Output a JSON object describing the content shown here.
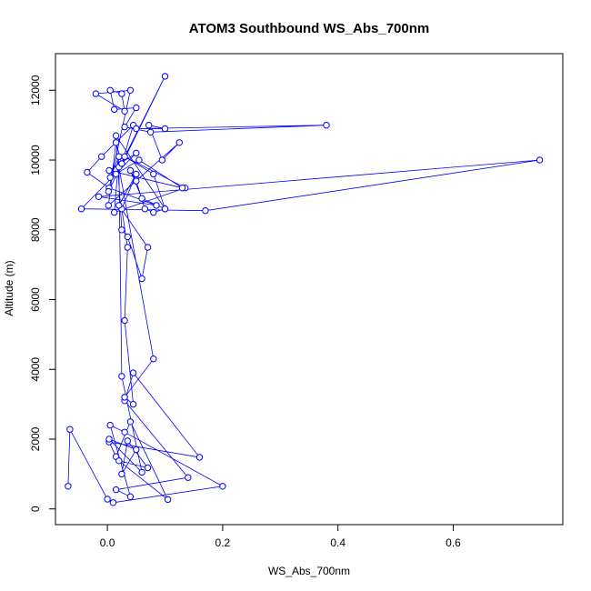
{
  "chart_data": {
    "type": "line",
    "title": "ATOM3 Southbound WS_Abs_700nm",
    "xlabel": "WS_Abs_700nm",
    "ylabel": "Altitude (m)",
    "xlim": [
      -0.09,
      0.79
    ],
    "ylim": [
      -450,
      13050
    ],
    "x_ticks": [
      0.0,
      0.2,
      0.4,
      0.6
    ],
    "x_tick_labels": [
      "0.0",
      "0.2",
      "0.4",
      "0.6"
    ],
    "y_ticks": [
      0,
      2000,
      4000,
      6000,
      8000,
      10000,
      12000
    ],
    "y_tick_labels": [
      "0",
      "2000",
      "4000",
      "6000",
      "8000",
      "10000",
      "12000"
    ],
    "grid": false,
    "legend": "none",
    "style": {
      "line_color": "#0000ff",
      "marker": "open-circle",
      "frame": true
    },
    "series": [
      {
        "x": [
          -0.068,
          -0.065,
          0.0,
          0.01,
          0.2,
          0.03,
          0.005,
          0.04,
          0.015,
          0.14,
          0.03,
          0.045,
          0.16,
          0.003,
          0.015,
          0.04,
          0.105,
          0.02,
          0.07,
          0.035,
          0.025,
          0.05,
          0.003,
          0.06,
          0.025,
          0.02,
          0.08,
          0.03,
          0.045,
          0.03,
          0.035,
          0.025,
          0.05,
          0.02,
          0.07,
          0.06,
          0.035,
          0.025,
          0.015,
          0.1,
          0.08,
          0.065,
          0.05,
          0.04,
          0.06,
          0.1,
          0.08,
          0.03,
          0.135,
          0.012,
          0.02,
          0.005,
          0.055,
          0.13,
          0.003,
          0.05,
          -0.045,
          0.17,
          0.75,
          -0.015,
          0.085,
          0.003,
          -0.035,
          -0.01,
          0.045,
          0.025,
          0.015,
          0.002,
          0.125,
          0.095,
          0.072,
          0.1,
          0.05,
          0.38,
          0.075,
          0.03,
          0.05,
          0.012,
          0.005,
          0.025,
          0.03,
          -0.02,
          0.04,
          0.002,
          0.1,
          0.015
        ],
        "y": [
          650,
          2280,
          280,
          180,
          650,
          2200,
          2400,
          350,
          550,
          900,
          3100,
          3900,
          1480,
          1920,
          1500,
          2500,
          270,
          1380,
          1180,
          1950,
          1000,
          1700,
          2000,
          1050,
          3800,
          9800,
          4300,
          3200,
          3000,
          5400,
          7500,
          8600,
          9600,
          8700,
          7500,
          6600,
          7800,
          8000,
          10700,
          8600,
          8500,
          8600,
          9400,
          9700,
          8900,
          8600,
          9600,
          10100,
          9200,
          8500,
          10100,
          9500,
          10000,
          9200,
          9700,
          10200,
          8600,
          8550,
          10000,
          8950,
          8700,
          9200,
          9650,
          10100,
          11000,
          9900,
          10500,
          8700,
          10500,
          10000,
          11000,
          10900,
          10900,
          11000,
          10800,
          10950,
          11500,
          11450,
          12000,
          11900,
          11400,
          11900,
          12000,
          9100,
          12400,
          9600
        ]
      }
    ]
  }
}
